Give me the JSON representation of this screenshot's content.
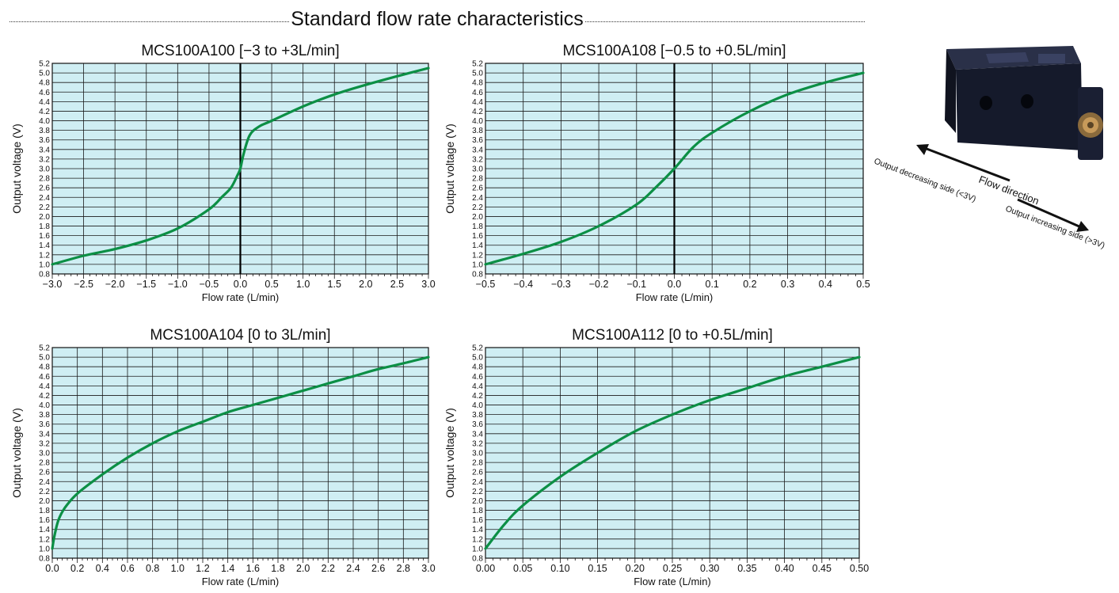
{
  "page": {
    "title": "Standard flow rate characteristics"
  },
  "figure": {
    "flow_direction_label": "Flow direction",
    "decreasing_label": "Output decreasing side (<3V)",
    "increasing_label": "Output increasing side (>3V)"
  },
  "colors": {
    "plot_background": "#cfeef3",
    "grid_line": "#1a1a1a",
    "curve": "#0c8f45",
    "device_body": "#151a2b"
  },
  "chart_data": [
    {
      "type": "line",
      "title": "MCS100A100 [−3 to +3L/min]",
      "xlabel": "Flow rate (L/min)",
      "ylabel": "Output voltage (V)",
      "xlim": [
        -3.0,
        3.0
      ],
      "ylim": [
        0.8,
        5.2
      ],
      "x_ticks": [
        "−3.0",
        "−2.5",
        "−2.0",
        "−1.5",
        "−1.0",
        "−0.5",
        "0.0",
        "0.5",
        "1.0",
        "1.5",
        "2.0",
        "2.5",
        "3.0"
      ],
      "y_ticks": [
        "0.8",
        "1.0",
        "1.2",
        "1.4",
        "1.6",
        "1.8",
        "2.0",
        "2.2",
        "2.4",
        "2.6",
        "2.8",
        "3.0",
        "3.2",
        "3.4",
        "3.6",
        "3.8",
        "4.0",
        "4.2",
        "4.4",
        "4.6",
        "4.8",
        "5.0",
        "5.2"
      ],
      "zero_line": true,
      "grid": true,
      "x": [
        -3.0,
        -2.5,
        -2.0,
        -1.5,
        -1.0,
        -0.5,
        -0.3,
        -0.15,
        -0.05,
        0.0,
        0.05,
        0.15,
        0.3,
        0.5,
        1.0,
        1.5,
        2.0,
        2.5,
        3.0
      ],
      "y": [
        1.0,
        1.18,
        1.32,
        1.5,
        1.75,
        2.15,
        2.4,
        2.6,
        2.85,
        3.0,
        3.3,
        3.7,
        3.88,
        4.0,
        4.3,
        4.55,
        4.75,
        4.93,
        5.1
      ]
    },
    {
      "type": "line",
      "title": "MCS100A108 [−0.5 to +0.5L/min]",
      "xlabel": "Flow rate (L/min)",
      "ylabel": "Output voltage (V)",
      "xlim": [
        -0.5,
        0.5
      ],
      "ylim": [
        0.8,
        5.2
      ],
      "x_ticks": [
        "−0.5",
        "−0.4",
        "−0.3",
        "−0.2",
        "−0.1",
        "0.0",
        "0.1",
        "0.2",
        "0.3",
        "0.4",
        "0.5"
      ],
      "y_ticks": [
        "0.8",
        "1.0",
        "1.2",
        "1.4",
        "1.6",
        "1.8",
        "2.0",
        "2.2",
        "2.4",
        "2.6",
        "2.8",
        "3.0",
        "3.2",
        "3.4",
        "3.6",
        "3.8",
        "4.0",
        "4.2",
        "4.4",
        "4.6",
        "4.8",
        "5.0",
        "5.2"
      ],
      "zero_line": true,
      "grid": true,
      "x": [
        -0.5,
        -0.4,
        -0.3,
        -0.2,
        -0.1,
        -0.05,
        0.0,
        0.05,
        0.1,
        0.2,
        0.3,
        0.4,
        0.5
      ],
      "y": [
        1.0,
        1.22,
        1.47,
        1.8,
        2.25,
        2.6,
        3.0,
        3.45,
        3.75,
        4.2,
        4.55,
        4.8,
        5.0
      ]
    },
    {
      "type": "line",
      "title": "MCS100A104 [0 to 3L/min]",
      "xlabel": "Flow rate (L/min)",
      "ylabel": "Output voltage (V)",
      "xlim": [
        0.0,
        3.0
      ],
      "ylim": [
        0.8,
        5.2
      ],
      "x_ticks": [
        "0.0",
        "0.2",
        "0.4",
        "0.6",
        "0.8",
        "1.0",
        "1.2",
        "1.4",
        "1.6",
        "1.8",
        "2.0",
        "2.2",
        "2.4",
        "2.6",
        "2.8",
        "3.0"
      ],
      "y_ticks": [
        "0.8",
        "1.0",
        "1.2",
        "1.4",
        "1.6",
        "1.8",
        "2.0",
        "2.2",
        "2.4",
        "2.6",
        "2.8",
        "3.0",
        "3.2",
        "3.4",
        "3.6",
        "3.8",
        "4.0",
        "4.2",
        "4.4",
        "4.6",
        "4.8",
        "5.0",
        "5.2"
      ],
      "zero_line": false,
      "grid": true,
      "x": [
        0.0,
        0.02,
        0.05,
        0.1,
        0.2,
        0.4,
        0.6,
        0.8,
        1.0,
        1.2,
        1.4,
        1.6,
        1.8,
        2.0,
        2.2,
        2.4,
        2.6,
        2.8,
        3.0
      ],
      "y": [
        1.0,
        1.3,
        1.6,
        1.85,
        2.15,
        2.55,
        2.9,
        3.2,
        3.45,
        3.65,
        3.85,
        4.0,
        4.15,
        4.3,
        4.45,
        4.6,
        4.75,
        4.87,
        5.0
      ]
    },
    {
      "type": "line",
      "title": "MCS100A112 [0 to +0.5L/min]",
      "xlabel": "Flow rate (L/min)",
      "ylabel": "Output voltage (V)",
      "xlim": [
        0.0,
        0.5
      ],
      "ylim": [
        0.8,
        5.2
      ],
      "x_ticks": [
        "0.00",
        "0.05",
        "0.10",
        "0.15",
        "0.20",
        "0.25",
        "0.30",
        "0.35",
        "0.40",
        "0.45",
        "0.50"
      ],
      "y_ticks": [
        "0.8",
        "1.0",
        "1.2",
        "1.4",
        "1.6",
        "1.8",
        "2.0",
        "2.2",
        "2.4",
        "2.6",
        "2.8",
        "3.0",
        "3.2",
        "3.4",
        "3.6",
        "3.8",
        "4.0",
        "4.2",
        "4.4",
        "4.6",
        "4.8",
        "5.0",
        "5.2"
      ],
      "zero_line": false,
      "grid": true,
      "x": [
        0.0,
        0.025,
        0.05,
        0.1,
        0.15,
        0.2,
        0.25,
        0.3,
        0.35,
        0.4,
        0.45,
        0.5
      ],
      "y": [
        1.0,
        1.5,
        1.9,
        2.5,
        3.0,
        3.45,
        3.8,
        4.1,
        4.35,
        4.6,
        4.8,
        5.0
      ]
    }
  ]
}
